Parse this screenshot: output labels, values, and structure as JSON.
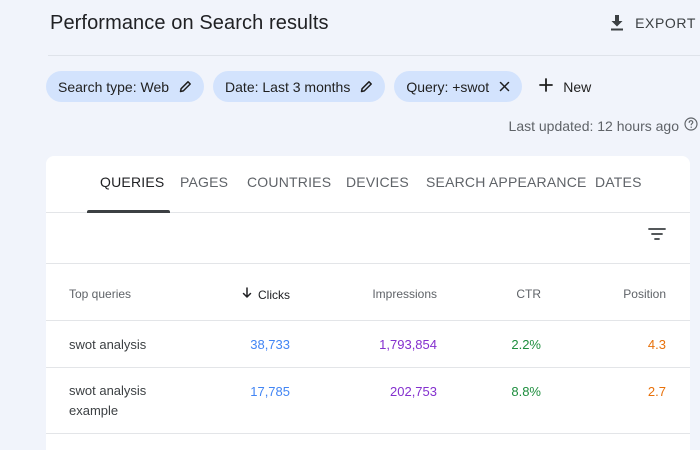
{
  "header": {
    "title": "Performance on Search results",
    "export_label": "EXPORT"
  },
  "filters": {
    "chips": [
      {
        "label": "Search type: Web",
        "icon": "pencil-icon"
      },
      {
        "label": "Date: Last 3 months",
        "icon": "pencil-icon"
      },
      {
        "label": "Query: +swot",
        "icon": "close-icon"
      }
    ],
    "new_label": "New"
  },
  "last_updated": "Last updated: 12 hours ago",
  "tabs": [
    {
      "label": "QUERIES",
      "active": true
    },
    {
      "label": "PAGES"
    },
    {
      "label": "COUNTRIES"
    },
    {
      "label": "DEVICES"
    },
    {
      "label": "SEARCH APPEARANCE"
    },
    {
      "label": "DATES"
    }
  ],
  "table": {
    "headers": {
      "query": "Top queries",
      "clicks": "Clicks",
      "impressions": "Impressions",
      "ctr": "CTR",
      "position": "Position"
    },
    "rows": [
      {
        "query": "swot analysis",
        "clicks": "38,733",
        "impressions": "1,793,854",
        "ctr": "2.2%",
        "position": "4.3"
      },
      {
        "query": "swot analysis example",
        "clicks": "17,785",
        "impressions": "202,753",
        "ctr": "8.8%",
        "position": "2.7"
      }
    ]
  },
  "colors": {
    "clicks": "#4285f4",
    "impressions": "#8430ce",
    "ctr": "#1e8e3e",
    "position": "#e8710a",
    "chip_bg": "#d3e3fd"
  }
}
